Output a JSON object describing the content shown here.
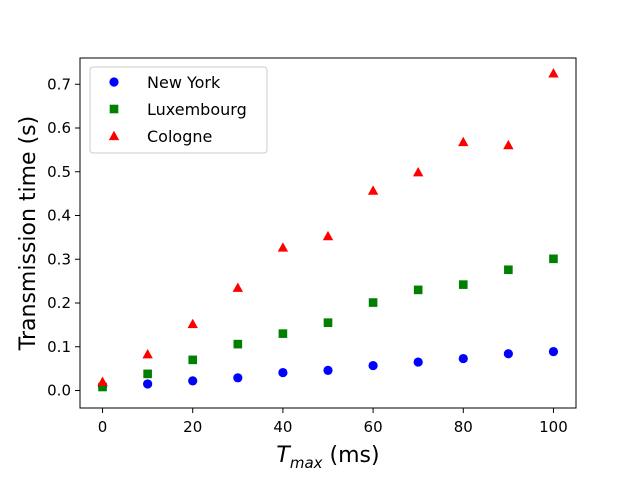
{
  "chart_data": {
    "type": "scatter",
    "xlabel": "T_max (ms)",
    "xlabel_parts": {
      "main": "T",
      "sub": "max",
      "unit": " (ms)"
    },
    "ylabel": "Transmission time (s)",
    "xlim": [
      -5,
      105
    ],
    "ylim": [
      -0.04,
      0.76
    ],
    "xticks": [
      0,
      20,
      40,
      60,
      80,
      100
    ],
    "yticks": [
      0.0,
      0.1,
      0.2,
      0.3,
      0.4,
      0.5,
      0.6,
      0.7
    ],
    "ytick_labels": [
      "0.0",
      "0.1",
      "0.2",
      "0.3",
      "0.4",
      "0.5",
      "0.6",
      "0.7"
    ],
    "grid": false,
    "legend_position": "top-left",
    "x": [
      0,
      10,
      20,
      30,
      40,
      50,
      60,
      70,
      80,
      90,
      100
    ],
    "series": [
      {
        "name": "New York",
        "marker": "circle",
        "color": "#0000ff",
        "values": [
          0.01,
          0.015,
          0.022,
          0.029,
          0.041,
          0.046,
          0.057,
          0.065,
          0.073,
          0.084,
          0.089
        ]
      },
      {
        "name": "Luxembourg",
        "marker": "square",
        "color": "#008000",
        "values": [
          0.008,
          0.038,
          0.07,
          0.106,
          0.13,
          0.155,
          0.201,
          0.23,
          0.242,
          0.276,
          0.301
        ]
      },
      {
        "name": "Cologne",
        "marker": "triangle",
        "color": "#ff0000",
        "values": [
          0.02,
          0.083,
          0.152,
          0.235,
          0.327,
          0.353,
          0.457,
          0.499,
          0.568,
          0.561,
          0.725
        ]
      }
    ]
  }
}
